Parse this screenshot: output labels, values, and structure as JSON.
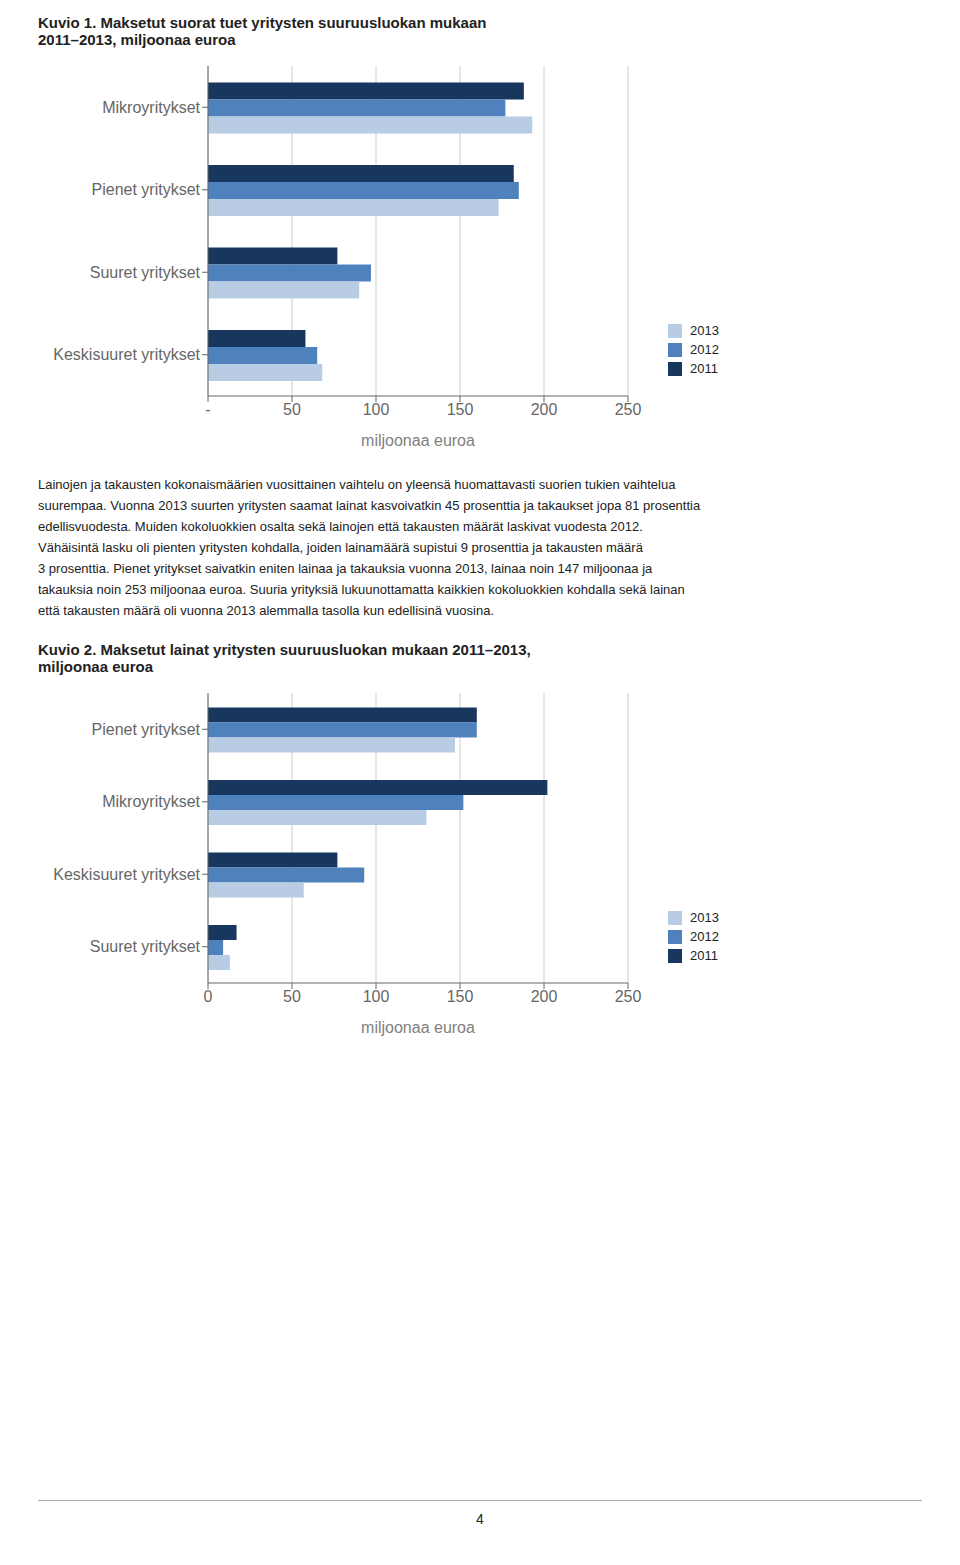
{
  "chart_data": [
    {
      "type": "bar",
      "orientation": "horizontal",
      "title": "Kuvio 1. Maksetut suorat tuet yritysten suuruusluokan mukaan\n2011–2013, miljoonaa euroa",
      "categories": [
        "Mikroyritykset",
        "Pienet yritykset",
        "Suuret yritykset",
        "Keskisuuret yritykset"
      ],
      "series": [
        {
          "name": "2013",
          "color": "#b8cce4",
          "values": [
            193,
            173,
            90,
            68
          ]
        },
        {
          "name": "2012",
          "color": "#4f81bd",
          "values": [
            177,
            185,
            97,
            65
          ]
        },
        {
          "name": "2011",
          "color": "#17375e",
          "values": [
            188,
            182,
            77,
            58
          ]
        }
      ],
      "xlabel": "miljoonaa euroa",
      "xlim": [
        0,
        250
      ],
      "xticks": [
        {
          "value": 0,
          "label": "-"
        },
        50,
        100,
        150,
        200,
        250
      ],
      "grid": true,
      "legend": "lower right",
      "annotations": [
        "Lainojen ja takausten kokonaismäärien vuosittainen vaihtelu on yleensä huomattavasti suorien tukien vaihtelua",
        "suurempaa. Vuonna 2013 suurten yritysten saamat lainat kasvoivatkin 45 prosenttia ja takaukset jopa 81 prosenttia",
        "edellisvuodesta. Muiden kokoluokkien osalta sekä lainojen että takausten määrät laskivat vuodesta 2012.",
        "Vähäisintä lasku oli pienten yritysten kohdalla, joiden lainamäärä supistui 9 prosenttia ja takausten määrä",
        "3 prosenttia. Pienet yritykset saivatkin eniten lainaa ja takauksia vuonna 2013, lainaa noin 147 miljoonaa ja",
        "takauksia noin 253 miljoonaa euroa. Suuria yrityksiä lukuunottamatta kaikkien kokoluokkien kohdalla sekä lainan",
        "että takausten määrä oli vuonna 2013 alemmalla tasolla kun edellisinä vuosina."
      ]
    },
    {
      "type": "bar",
      "orientation": "horizontal",
      "title": "Kuvio 2. Maksetut lainat yritysten suuruusluokan mukaan 2011–2013,\nmiljoonaa euroa",
      "categories": [
        "Pienet yritykset",
        "Mikroyritykset",
        "Keskisuuret yritykset",
        "Suuret yritykset"
      ],
      "series": [
        {
          "name": "2013",
          "color": "#b8cce4",
          "values": [
            147,
            130,
            57,
            13
          ]
        },
        {
          "name": "2012",
          "color": "#4f81bd",
          "values": [
            160,
            152,
            93,
            9
          ]
        },
        {
          "name": "2011",
          "color": "#17375e",
          "values": [
            160,
            202,
            77,
            17
          ]
        }
      ],
      "xlabel": "miljoonaa euroa",
      "xlim": [
        0,
        250
      ],
      "xticks": [
        0,
        50,
        100,
        150,
        200,
        250
      ],
      "grid": true,
      "legend": "lower right",
      "annotations": [
        "4"
      ]
    }
  ]
}
